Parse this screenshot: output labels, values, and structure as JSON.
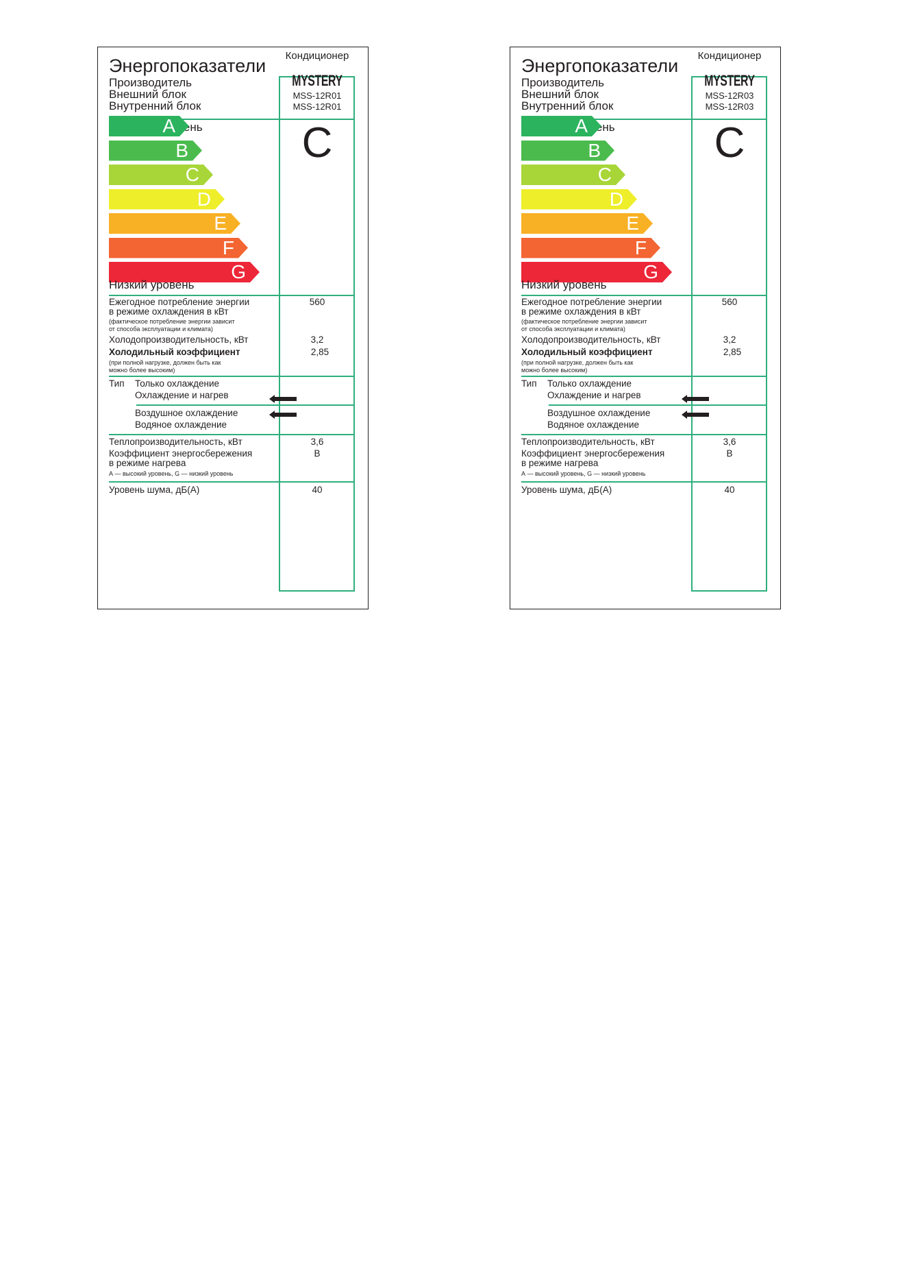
{
  "labels": [
    {
      "appliance": "Кондиционер",
      "title": "Энергопоказатели",
      "manufacturer_label": "Производитель",
      "outdoor_label": "Внешний блок",
      "indoor_label": "Внутренний блок",
      "brand": "MYSTERY",
      "outdoor_model": "MSS-12R01",
      "indoor_model": "MSS-12R01",
      "high_level": "Высокий уровень",
      "low_level": "Низкий уровень",
      "classes": [
        "A",
        "B",
        "C",
        "D",
        "E",
        "F",
        "G"
      ],
      "class_colors": [
        "#2bb35e",
        "#4bbb4e",
        "#a8d638",
        "#eeee2a",
        "#f8b124",
        "#f36532",
        "#ed2638"
      ],
      "rating": "C",
      "annual_line1": "Ежегодное потребление энергии",
      "annual_line2": "в режиме охлаждения в кВт",
      "annual_note1": "(фактическое потребление энергии зависит",
      "annual_note2": "от способа эксплуатации и климата)",
      "annual_value": "560",
      "cooling_capacity_label": "Холодопроизводительность, кВт",
      "cooling_capacity_value": "3,2",
      "eer_label": "Холодильный коэффициент",
      "eer_value": "2,85",
      "eer_note1": "(при полной нагрузке, должен быть как",
      "eer_note2": "можно более высоким)",
      "type_label": "Тип",
      "type_cooling_only": "Только охлаждение",
      "type_cooling_heating": "Охлаждение и нагрев",
      "type_air_cooled": "Воздушное охлаждение",
      "type_water_cooled": "Водяное охлаждение",
      "heating_capacity_label": "Теплопроизводительность, кВт",
      "heating_capacity_value": "3,6",
      "heating_class_line1": "Коэффициент энергосбережения",
      "heating_class_line2": "в режиме нагрева",
      "heating_class_note": "А — высокий уровень, G — низкий уровень",
      "heating_class_value": "B",
      "noise_label": "Уровень шума, дБ(А)",
      "noise_value": "40"
    },
    {
      "appliance": "Кондиционер",
      "title": "Энергопоказатели",
      "manufacturer_label": "Производитель",
      "outdoor_label": "Внешний блок",
      "indoor_label": "Внутренний блок",
      "brand": "MYSTERY",
      "outdoor_model": "MSS-12R03",
      "indoor_model": "MSS-12R03",
      "high_level": "Высокий уровень",
      "low_level": "Низкий уровень",
      "classes": [
        "A",
        "B",
        "C",
        "D",
        "E",
        "F",
        "G"
      ],
      "class_colors": [
        "#2bb35e",
        "#4bbb4e",
        "#a8d638",
        "#eeee2a",
        "#f8b124",
        "#f36532",
        "#ed2638"
      ],
      "rating": "C",
      "annual_line1": "Ежегодное потребление энергии",
      "annual_line2": "в режиме охлаждения в кВт",
      "annual_note1": "(фактическое потребление энергии зависит",
      "annual_note2": "от способа эксплуатации и климата)",
      "annual_value": "560",
      "cooling_capacity_label": "Холодопроизводительность, кВт",
      "cooling_capacity_value": "3,2",
      "eer_label": "Холодильный коэффициент",
      "eer_value": "2,85",
      "eer_note1": "(при полной нагрузке, должен быть как",
      "eer_note2": "можно более высоким)",
      "type_label": "Тип",
      "type_cooling_only": "Только охлаждение",
      "type_cooling_heating": "Охлаждение и нагрев",
      "type_air_cooled": "Воздушное охлаждение",
      "type_water_cooled": "Водяное охлаждение",
      "heating_capacity_label": "Теплопроизводительность, кВт",
      "heating_capacity_value": "3,6",
      "heating_class_line1": "Коэффициент энергосбережения",
      "heating_class_line2": "в режиме нагрева",
      "heating_class_note": "А — высокий уровень, G — низкий уровень",
      "heating_class_value": "B",
      "noise_label": "Уровень шума, дБ(А)",
      "noise_value": "40"
    }
  ]
}
